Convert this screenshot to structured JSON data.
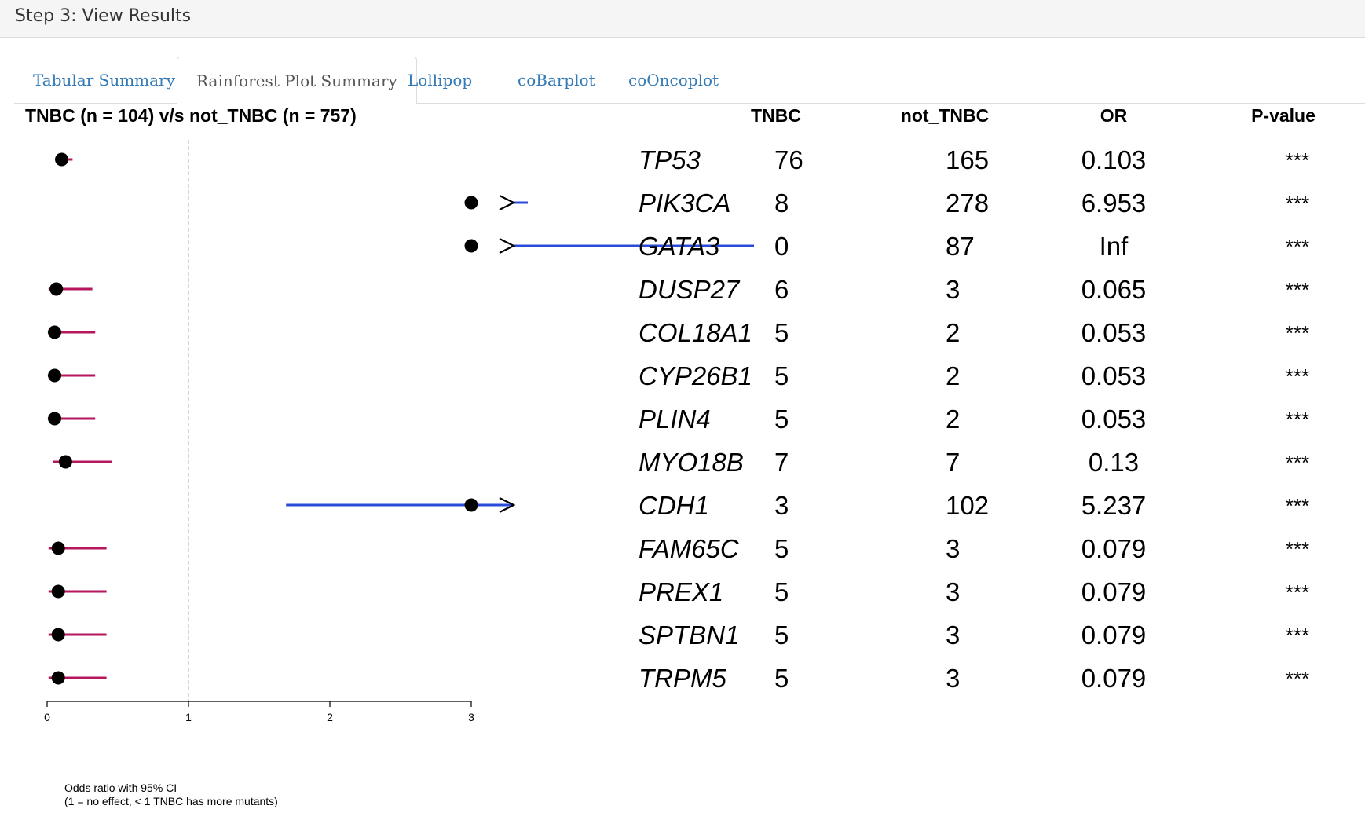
{
  "panel": {
    "title": "Step 3: View Results"
  },
  "tabs": [
    {
      "label": "Tabular Summary",
      "active": false
    },
    {
      "label": "Rainforest Plot Summary",
      "active": true
    },
    {
      "label": "Lollipop",
      "active": false
    },
    {
      "label": "coBarplot",
      "active": false
    },
    {
      "label": "coOncoplot",
      "active": false
    }
  ],
  "chart_data": {
    "type": "forest",
    "title": "TNBC (n = 104) v/s not_TNBC (n = 757)",
    "columns": [
      "TNBC",
      "not_TNBC",
      "OR",
      "P-value"
    ],
    "xlim": [
      0,
      3
    ],
    "xticks": [
      0,
      1,
      2,
      3
    ],
    "reference_line": 1,
    "footnote_line1": "Odds ratio with 95% CI",
    "footnote_line2": "(1 = no effect, < 1 TNBC has more mutants)",
    "colors": {
      "lower": "#b5165c",
      "higher": "#2a4bd7",
      "point": "#000000",
      "ref": "#bbbbbb"
    },
    "rows": [
      {
        "gene": "TP53",
        "tnbc": "76",
        "not_tnbc": "165",
        "or": "0.103",
        "p": "***",
        "or_value": 0.103,
        "ci_low": 0.06,
        "ci_high": 0.18,
        "truncated": false
      },
      {
        "gene": "PIK3CA",
        "tnbc": "8",
        "not_tnbc": "278",
        "or": "6.953",
        "p": "***",
        "or_value": 6.953,
        "ci_low": 3.4,
        "ci_high": 14.5,
        "truncated": true
      },
      {
        "gene": "GATA3",
        "tnbc": "0",
        "not_tnbc": "87",
        "or": "Inf",
        "p": "***",
        "or_value": 1000,
        "ci_low": 5.0,
        "ci_high": 1000,
        "truncated": true
      },
      {
        "gene": "DUSP27",
        "tnbc": "6",
        "not_tnbc": "3",
        "or": "0.065",
        "p": "***",
        "or_value": 0.065,
        "ci_low": 0.01,
        "ci_high": 0.32,
        "truncated": false
      },
      {
        "gene": "COL18A1",
        "tnbc": "5",
        "not_tnbc": "2",
        "or": "0.053",
        "p": "***",
        "or_value": 0.053,
        "ci_low": 0.005,
        "ci_high": 0.34,
        "truncated": false
      },
      {
        "gene": "CYP26B1",
        "tnbc": "5",
        "not_tnbc": "2",
        "or": "0.053",
        "p": "***",
        "or_value": 0.053,
        "ci_low": 0.005,
        "ci_high": 0.34,
        "truncated": false
      },
      {
        "gene": "PLIN4",
        "tnbc": "5",
        "not_tnbc": "2",
        "or": "0.053",
        "p": "***",
        "or_value": 0.053,
        "ci_low": 0.005,
        "ci_high": 0.34,
        "truncated": false
      },
      {
        "gene": "MYO18B",
        "tnbc": "7",
        "not_tnbc": "7",
        "or": "0.13",
        "p": "***",
        "or_value": 0.13,
        "ci_low": 0.04,
        "ci_high": 0.46,
        "truncated": false
      },
      {
        "gene": "CDH1",
        "tnbc": "3",
        "not_tnbc": "102",
        "or": "5.237",
        "p": "***",
        "or_value": 5.237,
        "ci_low": 1.69,
        "ci_high": 17.1,
        "truncated": true
      },
      {
        "gene": "FAM65C",
        "tnbc": "5",
        "not_tnbc": "3",
        "or": "0.079",
        "p": "***",
        "or_value": 0.079,
        "ci_low": 0.01,
        "ci_high": 0.42,
        "truncated": false
      },
      {
        "gene": "PREX1",
        "tnbc": "5",
        "not_tnbc": "3",
        "or": "0.079",
        "p": "***",
        "or_value": 0.079,
        "ci_low": 0.01,
        "ci_high": 0.42,
        "truncated": false
      },
      {
        "gene": "SPTBN1",
        "tnbc": "5",
        "not_tnbc": "3",
        "or": "0.079",
        "p": "***",
        "or_value": 0.079,
        "ci_low": 0.01,
        "ci_high": 0.42,
        "truncated": false
      },
      {
        "gene": "TRPM5",
        "tnbc": "5",
        "not_tnbc": "3",
        "or": "0.079",
        "p": "***",
        "or_value": 0.079,
        "ci_low": 0.01,
        "ci_high": 0.42,
        "truncated": false
      }
    ]
  }
}
